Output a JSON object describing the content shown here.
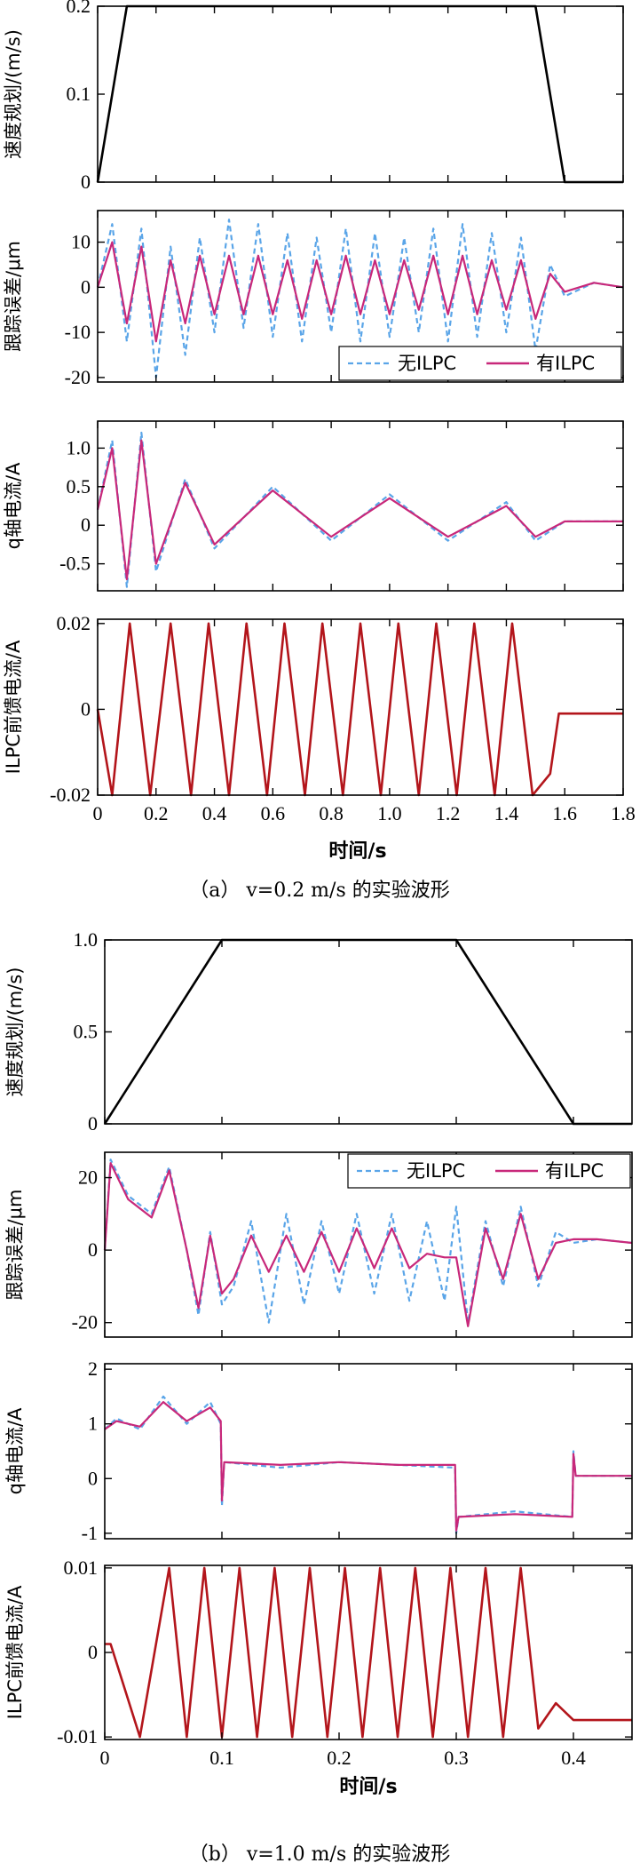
{
  "figures": [
    {
      "caption": "（a） v=0.2 m/s 的实验波形",
      "xlabel": "时间/s",
      "xlim": [
        0,
        1.8
      ],
      "xticks": [
        0,
        0.2,
        0.4,
        0.6,
        0.8,
        1.0,
        1.2,
        1.4,
        1.6,
        1.8
      ],
      "xtick_labels": [
        "0",
        "0.2",
        "0.4",
        "0.6",
        "0.8",
        "1.0",
        "1.2",
        "1.4",
        "1.6",
        "1.8"
      ]
    },
    {
      "caption": "（b） v=1.0 m/s 的实验波形",
      "xlabel": "时间/s",
      "xlim": [
        0,
        0.45
      ],
      "xticks": [
        0,
        0.1,
        0.2,
        0.3,
        0.4
      ],
      "xtick_labels": [
        "0",
        "0.1",
        "0.2",
        "0.3",
        "0.4"
      ]
    }
  ],
  "legend": {
    "series_a": "无ILPC",
    "series_b": "有ILPC"
  },
  "colors": {
    "planning": "#000000",
    "without_ilpc": "#5aa5e8",
    "with_ilpc": "#c8287a",
    "feedforward": "#b3151b"
  },
  "chart_data": [
    {
      "type": "line",
      "figure": "a",
      "ylabel": "速度规划/(m/s)",
      "ylim": [
        0,
        0.2
      ],
      "yticks": [
        0,
        0.1,
        0.2
      ],
      "ytick_labels": [
        "0",
        "0.1",
        "0.2"
      ],
      "series": [
        {
          "x": [
            0,
            0.1,
            1.5,
            1.6,
            1.8
          ],
          "values": [
            0,
            0.2,
            0.2,
            0,
            0
          ]
        }
      ]
    },
    {
      "type": "line",
      "figure": "a",
      "ylabel": "跟踪误差/μm",
      "ylim": [
        -21,
        17
      ],
      "yticks": [
        -20,
        -10,
        0,
        10
      ],
      "ytick_labels": [
        "-20",
        "-10",
        "0",
        "10"
      ],
      "legend_position": "bottom-right",
      "series": [
        {
          "name": "无ILPC",
          "x": [
            0,
            0.05,
            0.1,
            0.15,
            0.2,
            0.25,
            0.3,
            0.35,
            0.4,
            0.45,
            0.5,
            0.55,
            0.6,
            0.65,
            0.7,
            0.75,
            0.8,
            0.85,
            0.9,
            0.95,
            1.0,
            1.05,
            1.1,
            1.15,
            1.2,
            1.25,
            1.3,
            1.35,
            1.4,
            1.45,
            1.5,
            1.55,
            1.6,
            1.7,
            1.8
          ],
          "values": [
            0,
            14,
            -12,
            13,
            -20,
            9,
            -15,
            11,
            -10,
            15,
            -9,
            14,
            -11,
            12,
            -12,
            11,
            -10,
            13,
            -12,
            12,
            -11,
            11,
            -10,
            13,
            -12,
            14,
            -11,
            12,
            -10,
            11,
            -14,
            5,
            -2,
            1,
            0
          ]
        },
        {
          "name": "有ILPC",
          "x": [
            0,
            0.05,
            0.1,
            0.15,
            0.2,
            0.25,
            0.3,
            0.35,
            0.4,
            0.45,
            0.5,
            0.55,
            0.6,
            0.65,
            0.7,
            0.75,
            0.8,
            0.85,
            0.9,
            0.95,
            1.0,
            1.05,
            1.1,
            1.15,
            1.2,
            1.25,
            1.3,
            1.35,
            1.4,
            1.45,
            1.5,
            1.55,
            1.6,
            1.7,
            1.8
          ],
          "values": [
            0,
            10,
            -8,
            9,
            -12,
            6,
            -8,
            7,
            -6,
            7,
            -6,
            7,
            -6,
            6,
            -7,
            6,
            -6,
            7,
            -6,
            6,
            -6,
            6,
            -5,
            7,
            -6,
            7,
            -6,
            6,
            -5,
            6,
            -7,
            3,
            -1,
            1,
            0
          ]
        }
      ]
    },
    {
      "type": "line",
      "figure": "a",
      "ylabel": "q轴电流/A",
      "ylim": [
        -0.85,
        1.35
      ],
      "yticks": [
        -0.5,
        0,
        0.5,
        1.0
      ],
      "ytick_labels": [
        "-0.5",
        "0",
        "0.5",
        "1.0"
      ],
      "series": [
        {
          "name": "无ILPC",
          "x": [
            0,
            0.05,
            0.1,
            0.15,
            0.2,
            0.3,
            0.4,
            0.6,
            0.8,
            1.0,
            1.2,
            1.4,
            1.5,
            1.6,
            1.8
          ],
          "values": [
            0.2,
            1.1,
            -0.8,
            1.2,
            -0.6,
            0.6,
            -0.3,
            0.5,
            -0.2,
            0.4,
            -0.2,
            0.3,
            -0.2,
            0.05,
            0.05
          ]
        },
        {
          "name": "有ILPC",
          "x": [
            0,
            0.05,
            0.1,
            0.15,
            0.2,
            0.3,
            0.4,
            0.6,
            0.8,
            1.0,
            1.2,
            1.4,
            1.5,
            1.6,
            1.8
          ],
          "values": [
            0.2,
            1.0,
            -0.7,
            1.1,
            -0.5,
            0.55,
            -0.25,
            0.45,
            -0.15,
            0.35,
            -0.15,
            0.25,
            -0.15,
            0.05,
            0.05
          ]
        }
      ]
    },
    {
      "type": "line",
      "figure": "a",
      "ylabel": "ILPC前馈电流/A",
      "ylim": [
        -0.02,
        0.021
      ],
      "yticks": [
        -0.02,
        0,
        0.02
      ],
      "ytick_labels": [
        "-0.02",
        "0",
        "0.02"
      ],
      "series": [
        {
          "x": [
            0,
            0.05,
            0.11,
            0.18,
            0.25,
            0.32,
            0.38,
            0.45,
            0.51,
            0.58,
            0.64,
            0.71,
            0.77,
            0.84,
            0.9,
            0.97,
            1.03,
            1.1,
            1.16,
            1.23,
            1.29,
            1.36,
            1.42,
            1.49,
            1.55,
            1.58,
            1.8
          ],
          "values": [
            0,
            -0.02,
            0.02,
            -0.02,
            0.02,
            -0.02,
            0.02,
            -0.02,
            0.02,
            -0.02,
            0.02,
            -0.02,
            0.02,
            -0.02,
            0.02,
            -0.02,
            0.02,
            -0.02,
            0.02,
            -0.02,
            0.02,
            -0.02,
            0.02,
            -0.02,
            -0.015,
            -0.001,
            -0.001
          ]
        }
      ]
    },
    {
      "type": "line",
      "figure": "b",
      "ylabel": "速度规划/(m/s)",
      "ylim": [
        0,
        1.0
      ],
      "yticks": [
        0,
        0.5,
        1.0
      ],
      "ytick_labels": [
        "0",
        "0.5",
        "1.0"
      ],
      "series": [
        {
          "x": [
            0,
            0.1,
            0.3,
            0.4,
            0.45
          ],
          "values": [
            0,
            1.0,
            1.0,
            0,
            0
          ]
        }
      ]
    },
    {
      "type": "line",
      "figure": "b",
      "ylabel": "跟踪误差/μm",
      "ylim": [
        -24,
        27
      ],
      "yticks": [
        -20,
        0,
        20
      ],
      "ytick_labels": [
        "-20",
        "0",
        "20"
      ],
      "legend_position": "top-right",
      "series": [
        {
          "name": "无ILPC",
          "x": [
            0,
            0.005,
            0.02,
            0.04,
            0.055,
            0.07,
            0.08,
            0.09,
            0.1,
            0.11,
            0.125,
            0.14,
            0.155,
            0.17,
            0.185,
            0.2,
            0.215,
            0.23,
            0.245,
            0.26,
            0.275,
            0.29,
            0.3,
            0.31,
            0.325,
            0.34,
            0.355,
            0.37,
            0.385,
            0.4,
            0.42,
            0.45
          ],
          "values": [
            0,
            25,
            15,
            10,
            23,
            0,
            -18,
            5,
            -15,
            -10,
            8,
            -20,
            10,
            -15,
            8,
            -12,
            10,
            -12,
            10,
            -14,
            8,
            -14,
            12,
            -20,
            8,
            -10,
            12,
            -10,
            5,
            2,
            3,
            2
          ]
        },
        {
          "name": "有ILPC",
          "x": [
            0,
            0.005,
            0.02,
            0.04,
            0.055,
            0.07,
            0.08,
            0.09,
            0.1,
            0.11,
            0.125,
            0.14,
            0.155,
            0.17,
            0.185,
            0.2,
            0.215,
            0.23,
            0.245,
            0.26,
            0.275,
            0.29,
            0.3,
            0.31,
            0.325,
            0.34,
            0.355,
            0.37,
            0.385,
            0.4,
            0.42,
            0.45
          ],
          "values": [
            0,
            24,
            14,
            9,
            22,
            0,
            -16,
            4,
            -12,
            -8,
            4,
            -6,
            4,
            -6,
            5,
            -6,
            6,
            -5,
            6,
            -5,
            -1,
            -2,
            -2,
            -21,
            6,
            -8,
            10,
            -8,
            2,
            3,
            3,
            2
          ]
        }
      ]
    },
    {
      "type": "line",
      "figure": "b",
      "ylabel": "q轴电流/A",
      "ylim": [
        -1.1,
        2.1
      ],
      "yticks": [
        -1,
        0,
        1,
        2
      ],
      "ytick_labels": [
        "-1",
        "0",
        "1",
        "2"
      ],
      "series": [
        {
          "name": "无ILPC",
          "x": [
            0,
            0.01,
            0.03,
            0.05,
            0.07,
            0.09,
            0.099,
            0.1,
            0.102,
            0.15,
            0.2,
            0.25,
            0.299,
            0.3,
            0.302,
            0.35,
            0.399,
            0.4,
            0.402,
            0.45
          ],
          "values": [
            0.9,
            1.1,
            0.9,
            1.5,
            1.0,
            1.4,
            1.0,
            -0.5,
            0.3,
            0.2,
            0.3,
            0.25,
            0.2,
            -1.0,
            -0.7,
            -0.6,
            -0.7,
            0.5,
            0.05,
            0.05
          ]
        },
        {
          "name": "有ILPC",
          "x": [
            0,
            0.01,
            0.03,
            0.05,
            0.07,
            0.09,
            0.099,
            0.1,
            0.102,
            0.15,
            0.2,
            0.25,
            0.299,
            0.3,
            0.302,
            0.35,
            0.399,
            0.4,
            0.402,
            0.45
          ],
          "values": [
            0.9,
            1.05,
            0.95,
            1.4,
            1.05,
            1.3,
            1.05,
            -0.4,
            0.3,
            0.25,
            0.3,
            0.25,
            0.25,
            -0.95,
            -0.7,
            -0.65,
            -0.7,
            0.45,
            0.05,
            0.05
          ]
        }
      ]
    },
    {
      "type": "line",
      "figure": "b",
      "ylabel": "ILPC前馈电流/A",
      "ylim": [
        -0.0103,
        0.0103
      ],
      "yticks": [
        -0.01,
        0,
        0.01
      ],
      "ytick_labels": [
        "-0.01",
        "0",
        "0.01"
      ],
      "series": [
        {
          "x": [
            0,
            0.005,
            0.03,
            0.055,
            0.07,
            0.085,
            0.1,
            0.115,
            0.13,
            0.145,
            0.16,
            0.175,
            0.19,
            0.205,
            0.22,
            0.235,
            0.25,
            0.265,
            0.28,
            0.295,
            0.31,
            0.325,
            0.34,
            0.355,
            0.37,
            0.385,
            0.4,
            0.45
          ],
          "values": [
            0.001,
            0.001,
            -0.01,
            0.01,
            -0.01,
            0.01,
            -0.01,
            0.01,
            -0.01,
            0.01,
            -0.01,
            0.01,
            -0.01,
            0.01,
            -0.01,
            0.01,
            -0.01,
            0.01,
            -0.01,
            0.01,
            -0.01,
            0.01,
            -0.01,
            0.01,
            -0.009,
            -0.006,
            -0.008,
            -0.008
          ]
        }
      ]
    }
  ]
}
